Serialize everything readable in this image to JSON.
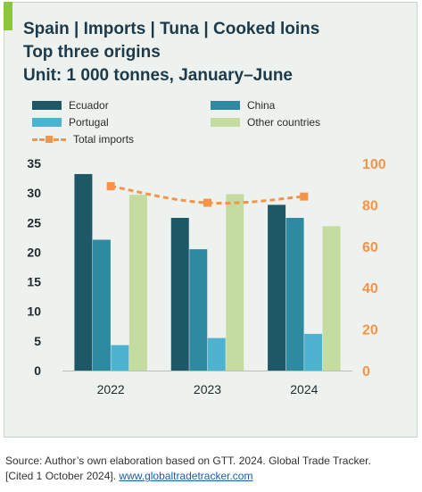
{
  "title_lines": [
    "Spain | Imports | Tuna | Cooked loins",
    "Top three origins",
    "Unit: 1 000 tonnes, January–June"
  ],
  "source": {
    "text_line1": "Source: Author’s own elaboration based on GTT. 2024. Global Trade Tracker.",
    "text_line2_prefix": "[Cited 1 October 2024]. ",
    "link": "www.globaltradetracker.com"
  },
  "colors": {
    "ecuador": "#1e5766",
    "china": "#2e8aa0",
    "portugal": "#4db3d0",
    "other": "#c5dca0",
    "total": "#f4934a",
    "left_axis_text": "#1f2a2e",
    "right_axis_text": "#f4934a"
  },
  "chart_data": {
    "type": "bar",
    "categories": [
      "2022",
      "2023",
      "2024"
    ],
    "series": [
      {
        "name": "Ecuador",
        "values": [
          33.2,
          25.8,
          28.0
        ],
        "axis": "left"
      },
      {
        "name": "China",
        "values": [
          22.1,
          20.5,
          25.8
        ],
        "axis": "left"
      },
      {
        "name": "Portugal",
        "values": [
          4.3,
          5.5,
          6.2
        ],
        "axis": "left"
      },
      {
        "name": "Other countries",
        "values": [
          29.7,
          29.8,
          24.4
        ],
        "axis": "left"
      },
      {
        "name": "Total imports",
        "type": "line",
        "values": [
          89,
          81,
          84
        ],
        "axis": "right"
      }
    ],
    "ylim_left": [
      0,
      35
    ],
    "yticks_left": [
      "0",
      "5",
      "10",
      "15",
      "20",
      "25",
      "30",
      "35"
    ],
    "ylim_right": [
      0,
      100
    ],
    "yticks_right": [
      "0",
      "20",
      "40",
      "60",
      "80",
      "100"
    ],
    "grid": false,
    "legend_position": "top"
  }
}
